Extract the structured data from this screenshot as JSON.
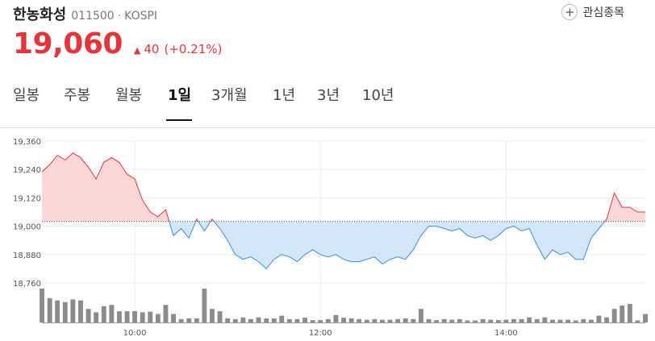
{
  "stock": {
    "name": "한농화성",
    "code": "011500",
    "market": "KOSPI",
    "price": "19,060",
    "change": "40",
    "change_pct": "(+0.21%)",
    "watch_label": "관심종목"
  },
  "tabs": [
    {
      "label": "일봉"
    },
    {
      "label": "주봉"
    },
    {
      "label": "월봉"
    },
    {
      "label": "1일",
      "active": true
    },
    {
      "label": "3개월"
    },
    {
      "label": "1년"
    },
    {
      "label": "3년"
    },
    {
      "label": "10년"
    }
  ],
  "colors": {
    "up": "#e3353b",
    "down": "#3a8ee0",
    "up_fill": "#fbd7d8",
    "down_fill": "#d4e6f9",
    "volume": "#8c8c8c"
  },
  "chart_data": {
    "type": "area",
    "baseline": 19020,
    "ylim": [
      18760,
      19360
    ],
    "y_ticks": [
      "19,360",
      "19,240",
      "19,120",
      "19,000",
      "18,880",
      "18,760"
    ],
    "x_ticks": [
      "10:00",
      "12:00",
      "14:00"
    ],
    "xlim": [
      "09:00",
      "15:30"
    ],
    "series": [
      {
        "x": [
          "09:00",
          "09:05",
          "09:10",
          "09:15",
          "09:20",
          "09:25",
          "09:30",
          "09:35",
          "09:40",
          "09:45",
          "09:50",
          "09:55",
          "10:00",
          "10:05",
          "10:10",
          "10:15",
          "10:20",
          "10:25",
          "10:30",
          "10:35",
          "10:40",
          "10:45",
          "10:50",
          "10:55",
          "11:00",
          "11:05",
          "11:10",
          "11:15",
          "11:20",
          "11:25",
          "11:30",
          "11:35",
          "11:40",
          "11:45",
          "11:50",
          "11:55",
          "12:00",
          "12:05",
          "12:10",
          "12:15",
          "12:20",
          "12:25",
          "12:30",
          "12:35",
          "12:40",
          "12:45",
          "12:50",
          "12:55",
          "13:00",
          "13:05",
          "13:10",
          "13:15",
          "13:20",
          "13:25",
          "13:30",
          "13:35",
          "13:40",
          "13:45",
          "13:50",
          "13:55",
          "14:00",
          "14:05",
          "14:10",
          "14:15",
          "14:20",
          "14:25",
          "14:30",
          "14:35",
          "14:40",
          "14:45",
          "14:50",
          "14:55",
          "15:00",
          "15:05",
          "15:10",
          "15:15",
          "15:20",
          "15:25",
          "15:30"
        ],
        "values": [
          19230,
          19260,
          19300,
          19280,
          19310,
          19290,
          19250,
          19200,
          19270,
          19290,
          19270,
          19220,
          19200,
          19110,
          19060,
          19040,
          19070,
          18960,
          18990,
          18950,
          19030,
          18980,
          19030,
          18990,
          18940,
          18880,
          18860,
          18870,
          18850,
          18820,
          18860,
          18880,
          18870,
          18850,
          18880,
          18900,
          18880,
          18870,
          18880,
          18860,
          18850,
          18850,
          18860,
          18870,
          18840,
          18860,
          18870,
          18860,
          18900,
          18960,
          19000,
          19000,
          18990,
          18980,
          18990,
          18960,
          18950,
          18960,
          18940,
          18960,
          18990,
          19000,
          18980,
          18990,
          18920,
          18860,
          18900,
          18880,
          18890,
          18860,
          18860,
          18950,
          18990,
          19030,
          19140,
          19080,
          19080,
          19060,
          19060
        ]
      }
    ],
    "volume": [
      100,
      72,
      65,
      60,
      68,
      65,
      40,
      30,
      48,
      52,
      33,
      33,
      33,
      30,
      32,
      25,
      52,
      25,
      10,
      12,
      12,
      100,
      40,
      33,
      12,
      10,
      15,
      10,
      15,
      12,
      12,
      20,
      10,
      10,
      14,
      7,
      7,
      10,
      22,
      14,
      12,
      10,
      8,
      10,
      8,
      8,
      10,
      12,
      10,
      40,
      10,
      7,
      10,
      8,
      10,
      6,
      6,
      10,
      8,
      7,
      8,
      10,
      10,
      15,
      10,
      15,
      8,
      8,
      8,
      6,
      10,
      8,
      20,
      15,
      40,
      50,
      55,
      6,
      25
    ]
  }
}
